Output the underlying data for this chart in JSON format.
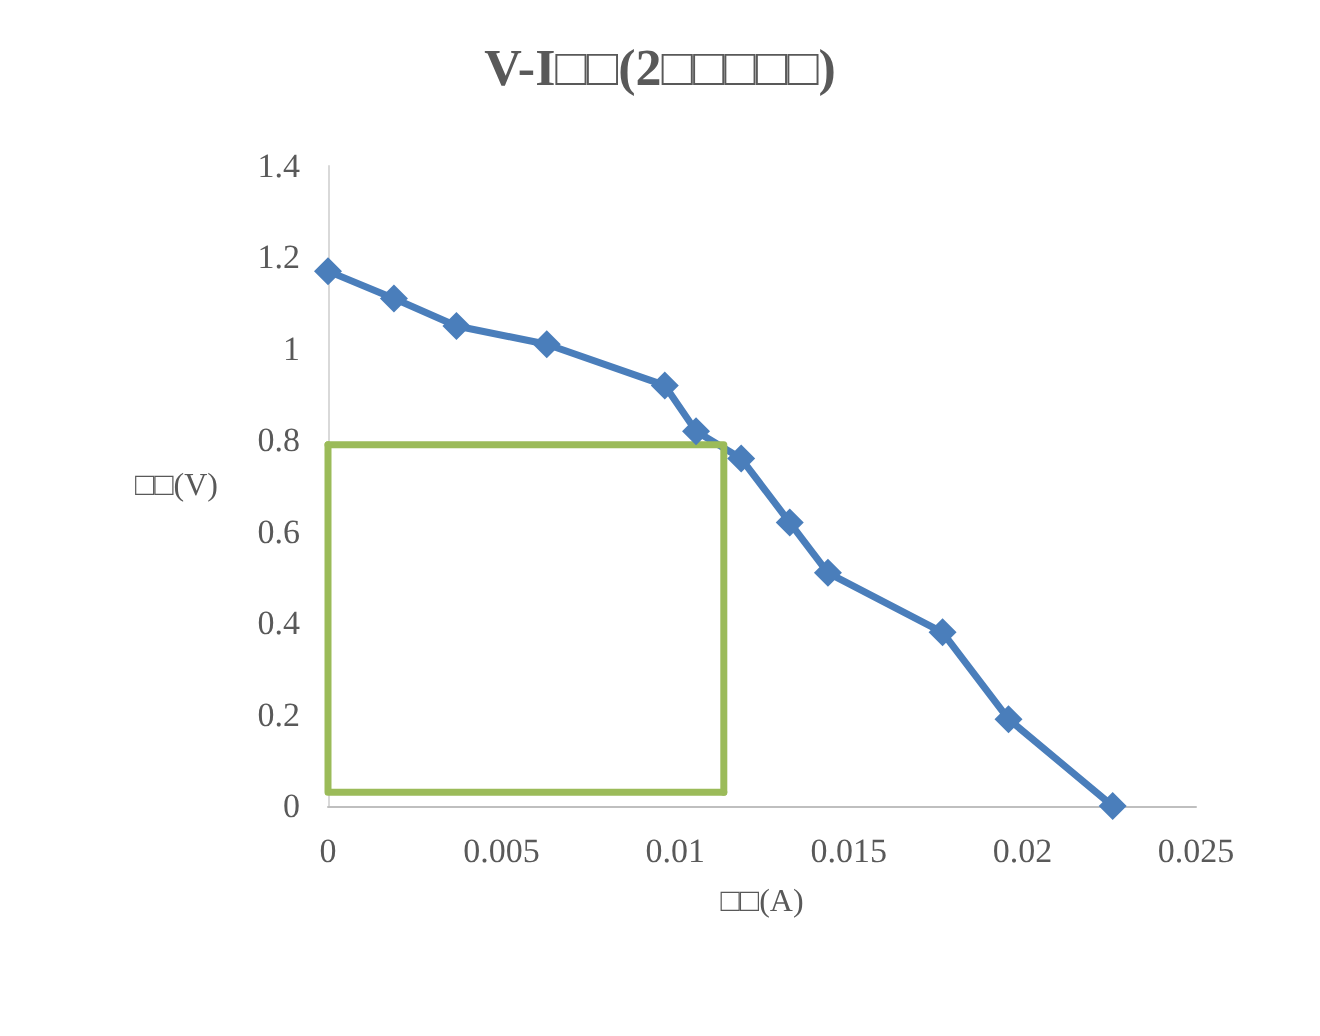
{
  "chart_data": {
    "type": "line",
    "title": "V-I□□(2□□□□□)",
    "xlabel": "□□(A)",
    "ylabel": "□□(V)",
    "xlim": [
      0,
      0.025
    ],
    "xticks": [
      0,
      0.005,
      0.01,
      0.015,
      0.02,
      0.025
    ],
    "ylim": [
      0,
      1.4
    ],
    "yticks": [
      0,
      0.2,
      0.4,
      0.6,
      0.8,
      1,
      1.2,
      1.4
    ],
    "grid": false,
    "series": [
      {
        "color": "#4a7ebb",
        "marker": "diamond",
        "x": [
          0,
          0.0019,
          0.0037,
          0.0063,
          0.0097,
          0.0106,
          0.0119,
          0.0133,
          0.0144,
          0.0177,
          0.0196,
          0.0226
        ],
        "values": [
          1.17,
          1.11,
          1.05,
          1.01,
          0.92,
          0.82,
          0.76,
          0.62,
          0.51,
          0.38,
          0.19,
          0
        ]
      },
      {
        "color": "#9bbb59",
        "marker": "none",
        "x": [
          0,
          0.0114,
          0.0114
        ],
        "values": [
          0.79,
          0.79,
          0.03
        ]
      },
      {
        "color": "#9bbb59",
        "marker": "none",
        "x": [
          0,
          0,
          0.0114
        ],
        "values": [
          0.79,
          0.03,
          0.03
        ]
      }
    ]
  }
}
